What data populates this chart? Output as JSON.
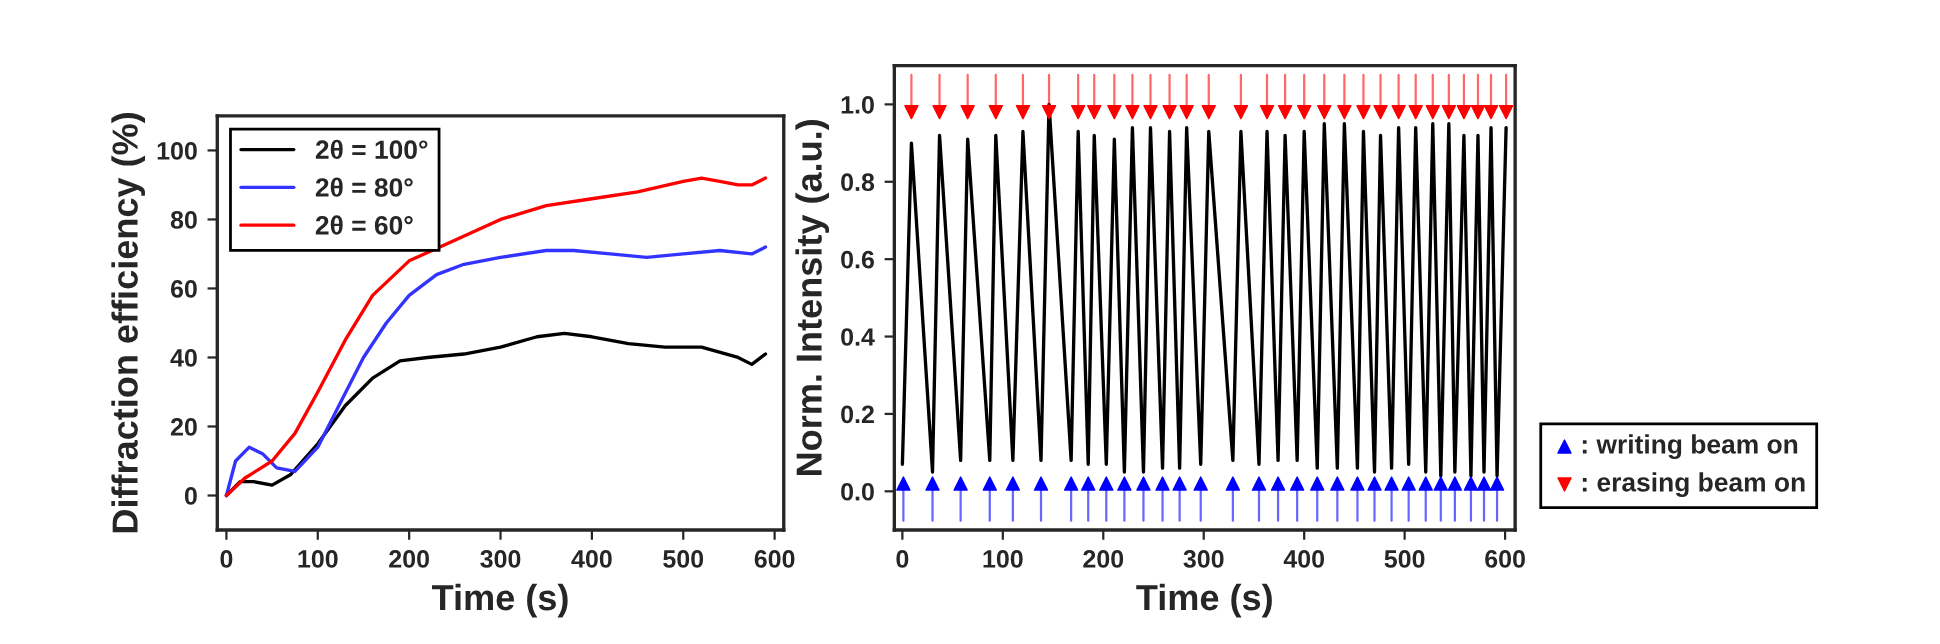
{
  "chart_data": [
    {
      "type": "line",
      "xlabel": "Time (s)",
      "ylabel": "Diffraction efficiency (%)",
      "xlim": [
        -10,
        610
      ],
      "ylim": [
        -10,
        110
      ],
      "xticks": [
        0,
        100,
        200,
        300,
        400,
        500,
        600
      ],
      "yticks": [
        0,
        20,
        40,
        60,
        80,
        100
      ],
      "legend": "top left",
      "grid": false,
      "series": [
        {
          "name": "2θ = 100°",
          "color": "#000000",
          "x": [
            0,
            15,
            30,
            50,
            70,
            100,
            130,
            160,
            190,
            220,
            260,
            300,
            340,
            370,
            400,
            440,
            480,
            520,
            560,
            575,
            590
          ],
          "values": [
            0,
            4,
            4,
            3,
            6,
            15,
            26,
            34,
            39,
            40,
            41,
            43,
            46,
            47,
            46,
            44,
            43,
            43,
            40,
            38,
            41
          ]
        },
        {
          "name": "2θ = 80°",
          "color": "#3333ff",
          "x": [
            0,
            10,
            25,
            40,
            55,
            75,
            100,
            125,
            150,
            175,
            200,
            230,
            260,
            300,
            350,
            380,
            420,
            460,
            500,
            540,
            575,
            590
          ],
          "values": [
            0,
            10,
            14,
            12,
            8,
            7,
            14,
            27,
            40,
            50,
            58,
            64,
            67,
            69,
            71,
            71,
            70,
            69,
            70,
            71,
            70,
            72
          ]
        },
        {
          "name": "2θ = 60°",
          "color": "#ff0000",
          "x": [
            0,
            20,
            50,
            75,
            100,
            130,
            160,
            200,
            250,
            300,
            350,
            400,
            450,
            500,
            520,
            540,
            560,
            575,
            590
          ],
          "values": [
            0,
            5,
            10,
            18,
            30,
            45,
            58,
            68,
            74,
            80,
            84,
            86,
            88,
            91,
            92,
            91,
            90,
            90,
            92
          ]
        }
      ]
    },
    {
      "type": "line",
      "xlabel": "Time (s)",
      "ylabel": "Norm. Intensity (a.u.)",
      "xlim": [
        -8,
        610
      ],
      "ylim": [
        -0.1,
        1.1
      ],
      "xticks": [
        0,
        100,
        200,
        300,
        400,
        500,
        600
      ],
      "yticks": [
        {
          "value": 0,
          "label": "0.0"
        },
        0.2,
        0.4,
        0.6,
        0.8,
        {
          "value": 1,
          "label": "1.0"
        }
      ],
      "legend": "bottom right",
      "grid": false,
      "series": [
        {
          "color": "#000000",
          "x": [
            0,
            9,
            30,
            37,
            58,
            65,
            87,
            93,
            110,
            120,
            138,
            146,
            168,
            175,
            185,
            191,
            203,
            211,
            221,
            229,
            240,
            247,
            259,
            266,
            276,
            283,
            297,
            305,
            329,
            337,
            355,
            363,
            374,
            381,
            393,
            400,
            413,
            420,
            433,
            440,
            453,
            459,
            470,
            476,
            487,
            494,
            504,
            511,
            521,
            528,
            536,
            544,
            550,
            559,
            566,
            573,
            579,
            586,
            592,
            601
          ],
          "values": [
            0.07,
            0.9,
            0.05,
            0.92,
            0.08,
            0.91,
            0.08,
            0.92,
            0.08,
            0.93,
            0.08,
            1.0,
            0.08,
            0.93,
            0.07,
            0.92,
            0.07,
            0.91,
            0.05,
            0.94,
            0.05,
            0.94,
            0.06,
            0.93,
            0.06,
            0.94,
            0.07,
            0.93,
            0.08,
            0.93,
            0.07,
            0.93,
            0.08,
            0.92,
            0.08,
            0.93,
            0.06,
            0.95,
            0.06,
            0.95,
            0.06,
            0.93,
            0.05,
            0.92,
            0.06,
            0.94,
            0.07,
            0.94,
            0.05,
            0.95,
            0.04,
            0.95,
            0.05,
            0.92,
            0.04,
            0.92,
            0.05,
            0.94,
            0.04,
            0.94
          ]
        },
        {
          "type": "scatter",
          "name": ": writing beam on",
          "color": "#0000ff",
          "marker": "triangle",
          "x": [
            1,
            30,
            58,
            87,
            110,
            138,
            168,
            185,
            203,
            221,
            240,
            259,
            276,
            297,
            329,
            355,
            374,
            393,
            413,
            433,
            453,
            470,
            487,
            504,
            521,
            536,
            550,
            566,
            579,
            592
          ],
          "values": [
            0.02,
            0.02,
            0.02,
            0.02,
            0.02,
            0.02,
            0.02,
            0.02,
            0.02,
            0.02,
            0.02,
            0.02,
            0.02,
            0.02,
            0.02,
            0.02,
            0.02,
            0.02,
            0.02,
            0.02,
            0.02,
            0.02,
            0.02,
            0.02,
            0.02,
            0.02,
            0.02,
            0.02,
            0.02,
            0.02
          ]
        },
        {
          "type": "scatter",
          "name": ": erasing beam on",
          "color": "#ff0000",
          "marker": "triangle",
          "x": [
            9,
            37,
            65,
            93,
            120,
            146,
            175,
            191,
            211,
            229,
            247,
            266,
            283,
            305,
            337,
            363,
            381,
            400,
            420,
            440,
            459,
            476,
            494,
            511,
            528,
            544,
            559,
            573,
            586,
            601
          ],
          "values": [
            0.98,
            0.98,
            0.98,
            0.98,
            0.98,
            0.98,
            0.98,
            0.98,
            0.98,
            0.98,
            0.98,
            0.98,
            0.98,
            0.98,
            0.98,
            0.98,
            0.98,
            0.98,
            0.98,
            0.98,
            0.98,
            0.98,
            0.98,
            0.98,
            0.98,
            0.98,
            0.98,
            0.98,
            0.98,
            0.98
          ]
        }
      ]
    }
  ]
}
